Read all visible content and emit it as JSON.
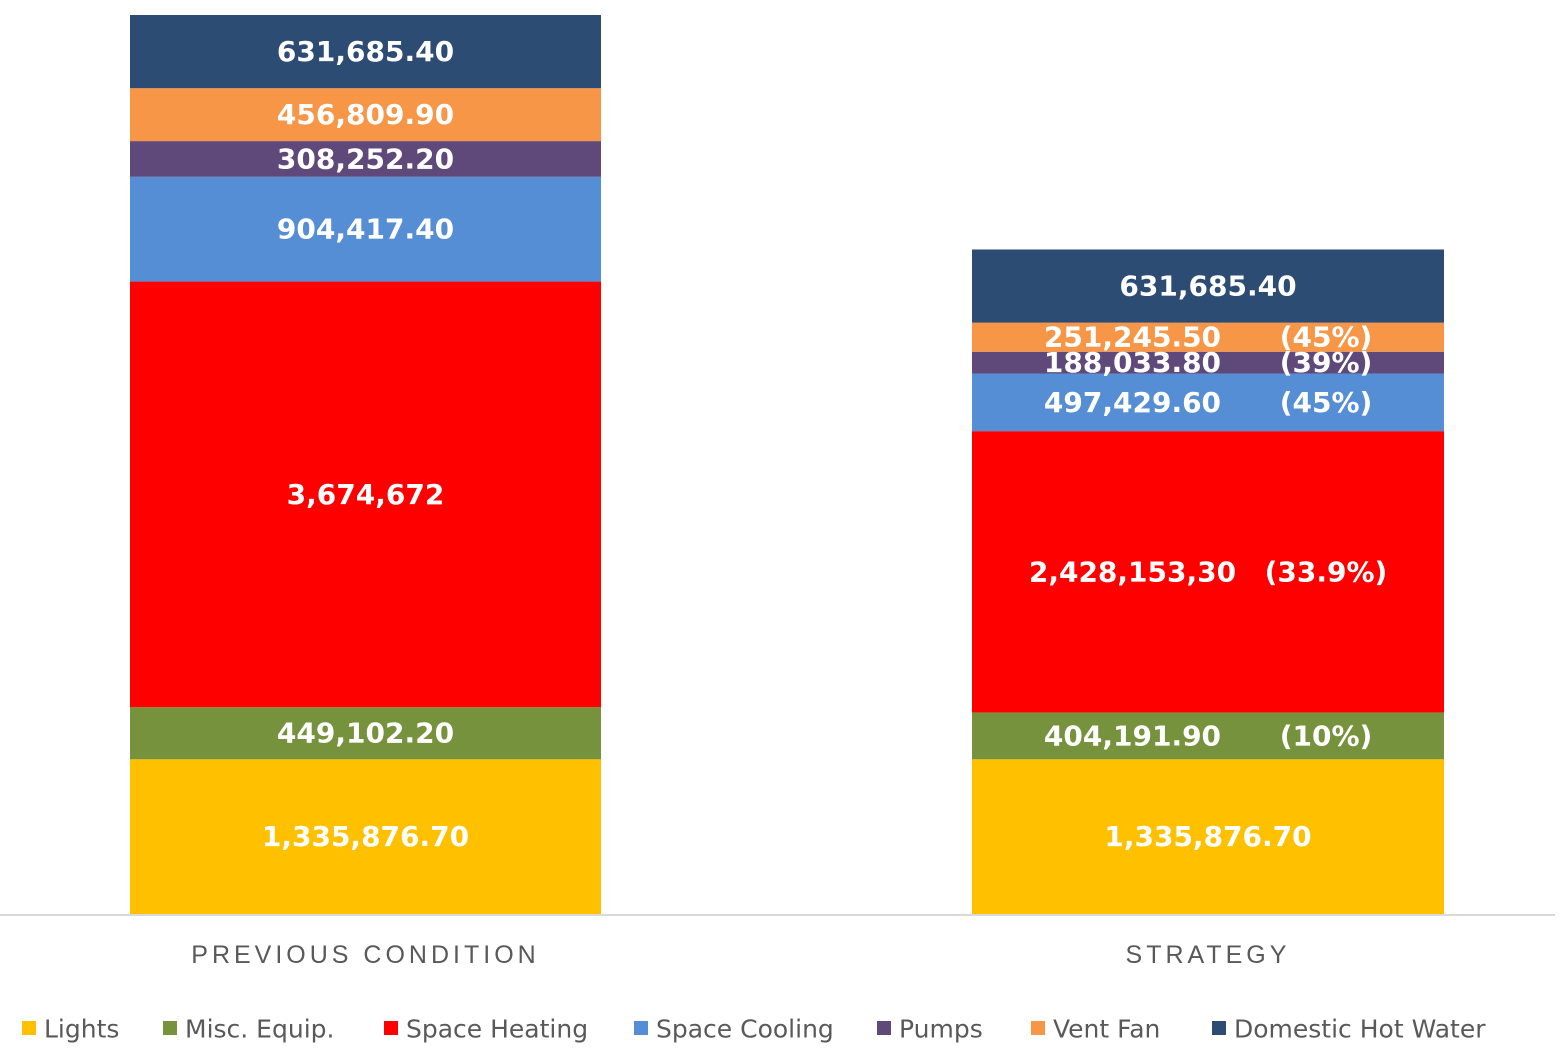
{
  "chart_data": {
    "type": "bar",
    "stacked": true,
    "categories": [
      "PREVIOUS CONDITION",
      "STRATEGY"
    ],
    "series": [
      {
        "name": "Lights",
        "color": "#FFC000",
        "values": [
          1335876.7,
          1335876.7
        ],
        "labels": [
          "1,335,876.70",
          "1,335,876.70"
        ],
        "pct": [
          "",
          ""
        ]
      },
      {
        "name": "Misc. Equip.",
        "color": "#76923C",
        "values": [
          449102.2,
          404191.9
        ],
        "labels": [
          "449,102.20",
          "404,191.90"
        ],
        "pct": [
          "",
          "(10%)"
        ]
      },
      {
        "name": "Space Heating",
        "color": "#FF0000",
        "values": [
          3674672,
          2428153.3
        ],
        "labels": [
          "3,674,672",
          "2,428,153,30"
        ],
        "pct": [
          "",
          "(33.9%)"
        ]
      },
      {
        "name": "Space Cooling",
        "color": "#558ED5",
        "values": [
          904417.4,
          497429.6
        ],
        "labels": [
          "904,417.40",
          "497,429.60"
        ],
        "pct": [
          "",
          "(45%)"
        ]
      },
      {
        "name": "Pumps",
        "color": "#5F497A",
        "values": [
          308252.2,
          188033.8
        ],
        "labels": [
          "308,252.20",
          "188,033.80"
        ],
        "pct": [
          "",
          "(39%)"
        ]
      },
      {
        "name": "Vent Fan",
        "color": "#F79646",
        "values": [
          456809.9,
          251245.5
        ],
        "labels": [
          "456,809.90",
          "251,245.50"
        ],
        "pct": [
          "",
          "(45%)"
        ]
      },
      {
        "name": "Domestic Hot Water",
        "color": "#2C4C74",
        "values": [
          631685.4,
          631685.4
        ],
        "labels": [
          "631,685.40",
          "631,685.40"
        ],
        "pct": [
          "",
          ""
        ]
      }
    ],
    "ylim": [
      0,
      7760816
    ],
    "grid": false,
    "legend_position": "bottom"
  }
}
